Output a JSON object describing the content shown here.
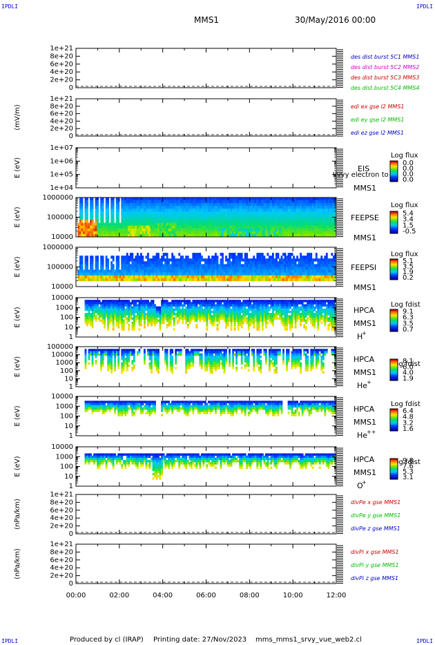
{
  "header": {
    "corner": "IPDLI",
    "mission": "MMS1",
    "date": "30/May/2016 00:00"
  },
  "footer": {
    "produced_by": "Produced by cl (IRAP)",
    "printing_date": "Printing date: 27/Nov/2023",
    "filename": "mms_mms1_srvy_vue_web2.cl"
  },
  "chart_data": {
    "type": "heatmap",
    "x": {
      "ticks": [
        "00:00",
        "02:00",
        "04:00",
        "06:00",
        "08:00",
        "10:00",
        "12:00"
      ],
      "range_hours": [
        0,
        12
      ]
    },
    "panels": [
      {
        "name": "des_dist",
        "type": "line",
        "ylabel": "",
        "yticks": [
          "1e+21",
          "8e+20",
          "6e+20",
          "4e+20",
          "2e+20",
          "0"
        ],
        "ylim": [
          0,
          1e+21
        ],
        "legend": [
          {
            "text": "des dist burst 5C1 MMS1",
            "color": "#0000cc"
          },
          {
            "text": "des dist burst 5C2 MMS2",
            "color": "#cc00cc"
          },
          {
            "text": "des dist burst 5C3 MMS3",
            "color": "#cc0000"
          },
          {
            "text": "des dist burst 5C4 MMS4",
            "color": "#00bb00"
          }
        ]
      },
      {
        "name": "edi_e",
        "type": "line",
        "ylabel": "(mV/m)",
        "yticks": [
          "1e+21",
          "8e+20",
          "6e+20",
          "4e+20",
          "2e+20",
          "0"
        ],
        "ylim": [
          0,
          1e+21
        ],
        "legend": [
          {
            "text": "edi ex gse l2 MMS1",
            "color": "#cc0000"
          },
          {
            "text": "edi ey gse l2 MMS1",
            "color": "#00bb00"
          },
          {
            "text": "edi ez gse l2 MMS1",
            "color": "#0000cc"
          }
        ]
      },
      {
        "name": "eis",
        "type": "heatmap",
        "ylabel": "E (eV)",
        "yticks": [
          "1e+07",
          "1e+06",
          "1e+05",
          "1e+04"
        ],
        "ylim": [
          10000.0,
          10000000.0
        ],
        "scale": "log",
        "labels": [
          "EIS",
          "MMS1"
        ],
        "overlay": "Ilvvy electron to",
        "cbar_title": "Log flux",
        "cbar_ticks": [
          "0.0",
          "0.0",
          "0.0",
          "0.0"
        ]
      },
      {
        "name": "feeps_e",
        "type": "heatmap",
        "ylabel": "E (eV)",
        "yticks": [
          "1000000",
          "100000",
          "10000"
        ],
        "ylim": [
          10000.0,
          1000000.0
        ],
        "scale": "log",
        "labels": [
          "FEEPSE",
          "MMS1"
        ],
        "cbar_title": "Log flux",
        "cbar_ticks": [
          "5.4",
          "3.4",
          "1.5",
          "-0.5"
        ]
      },
      {
        "name": "feeps_i",
        "type": "heatmap",
        "ylabel": "E (eV)",
        "yticks": [
          "1000000",
          "100000",
          "10000"
        ],
        "ylim": [
          10000.0,
          1000000.0
        ],
        "scale": "log",
        "labels": [
          "FEEPSI",
          "MMS1"
        ],
        "cbar_title": "Log flux",
        "cbar_ticks": [
          "5.1",
          "3.5",
          "1.9",
          "0.2"
        ]
      },
      {
        "name": "hpca_h",
        "type": "heatmap",
        "ylabel": "E (eV)",
        "yticks": [
          "10000",
          "1000",
          "100",
          "10",
          "1"
        ],
        "ylim": [
          1,
          10000.0
        ],
        "scale": "log",
        "labels": [
          "HPCA",
          "MMS1"
        ],
        "species": "H",
        "charge": "+",
        "cbar_title": "Log fdist",
        "cbar_ticks": [
          "9.1",
          "6.3",
          "3.5",
          "0.7"
        ]
      },
      {
        "name": "hpca_he1",
        "type": "heatmap",
        "ylabel": "E (eV)",
        "yticks": [
          "100000",
          "10000",
          "1000",
          "100",
          "10",
          "1"
        ],
        "ylim": [
          1,
          100000.0
        ],
        "scale": "log",
        "labels": [
          "HPCA",
          "MMS1"
        ],
        "species": "He",
        "charge": "+",
        "cbar_title": "Log fdist",
        "cbar_ticks": [
          "8.1",
          "6.0",
          "4.0",
          "1.9"
        ]
      },
      {
        "name": "hpca_he2",
        "type": "heatmap",
        "ylabel": "E (eV)",
        "yticks": [
          "10000",
          "1000",
          "100",
          "10",
          "1"
        ],
        "ylim": [
          1,
          10000.0
        ],
        "scale": "log",
        "labels": [
          "HPCA",
          "MMS1"
        ],
        "species": "He",
        "charge": "++",
        "cbar_title": "Log fdist",
        "cbar_ticks": [
          "6.4",
          "4.8",
          "3.2",
          "1.6"
        ]
      },
      {
        "name": "hpca_o",
        "type": "heatmap",
        "ylabel": "E (eV)",
        "yticks": [
          "10000",
          "1000",
          "100",
          "10",
          "1"
        ],
        "ylim": [
          1,
          10000.0
        ],
        "scale": "log",
        "labels": [
          "HPCA",
          "MMS1"
        ],
        "species": "O",
        "charge": "+",
        "cbar_title": "Log fdist",
        "cbar_ticks": [
          "9.8",
          "7.6",
          "5.3",
          "3.1"
        ]
      },
      {
        "name": "divpe",
        "type": "line",
        "ylabel": "(nPa/km)",
        "yticks": [
          "1e+21",
          "8e+20",
          "6e+20",
          "4e+20",
          "2e+20",
          "0"
        ],
        "ylim": [
          0,
          1e+21
        ],
        "legend": [
          {
            "text": "divPe x gse MMS1",
            "color": "#cc0000"
          },
          {
            "text": "divPe y gse MMS1",
            "color": "#00bb00"
          },
          {
            "text": "divPe z gse MMS1",
            "color": "#0000cc"
          }
        ]
      },
      {
        "name": "divpi",
        "type": "line",
        "ylabel": "(nPa/km)",
        "yticks": [
          "1e+21",
          "8e+20",
          "6e+20",
          "4e+20",
          "2e+20",
          "0"
        ],
        "ylim": [
          0,
          1e+21
        ],
        "legend": [
          {
            "text": "divPi x gse MMS1",
            "color": "#cc0000"
          },
          {
            "text": "divPi y gse MMS1",
            "color": "#00bb00"
          },
          {
            "text": "divPi z gse MMS1",
            "color": "#0000cc"
          }
        ]
      }
    ]
  }
}
